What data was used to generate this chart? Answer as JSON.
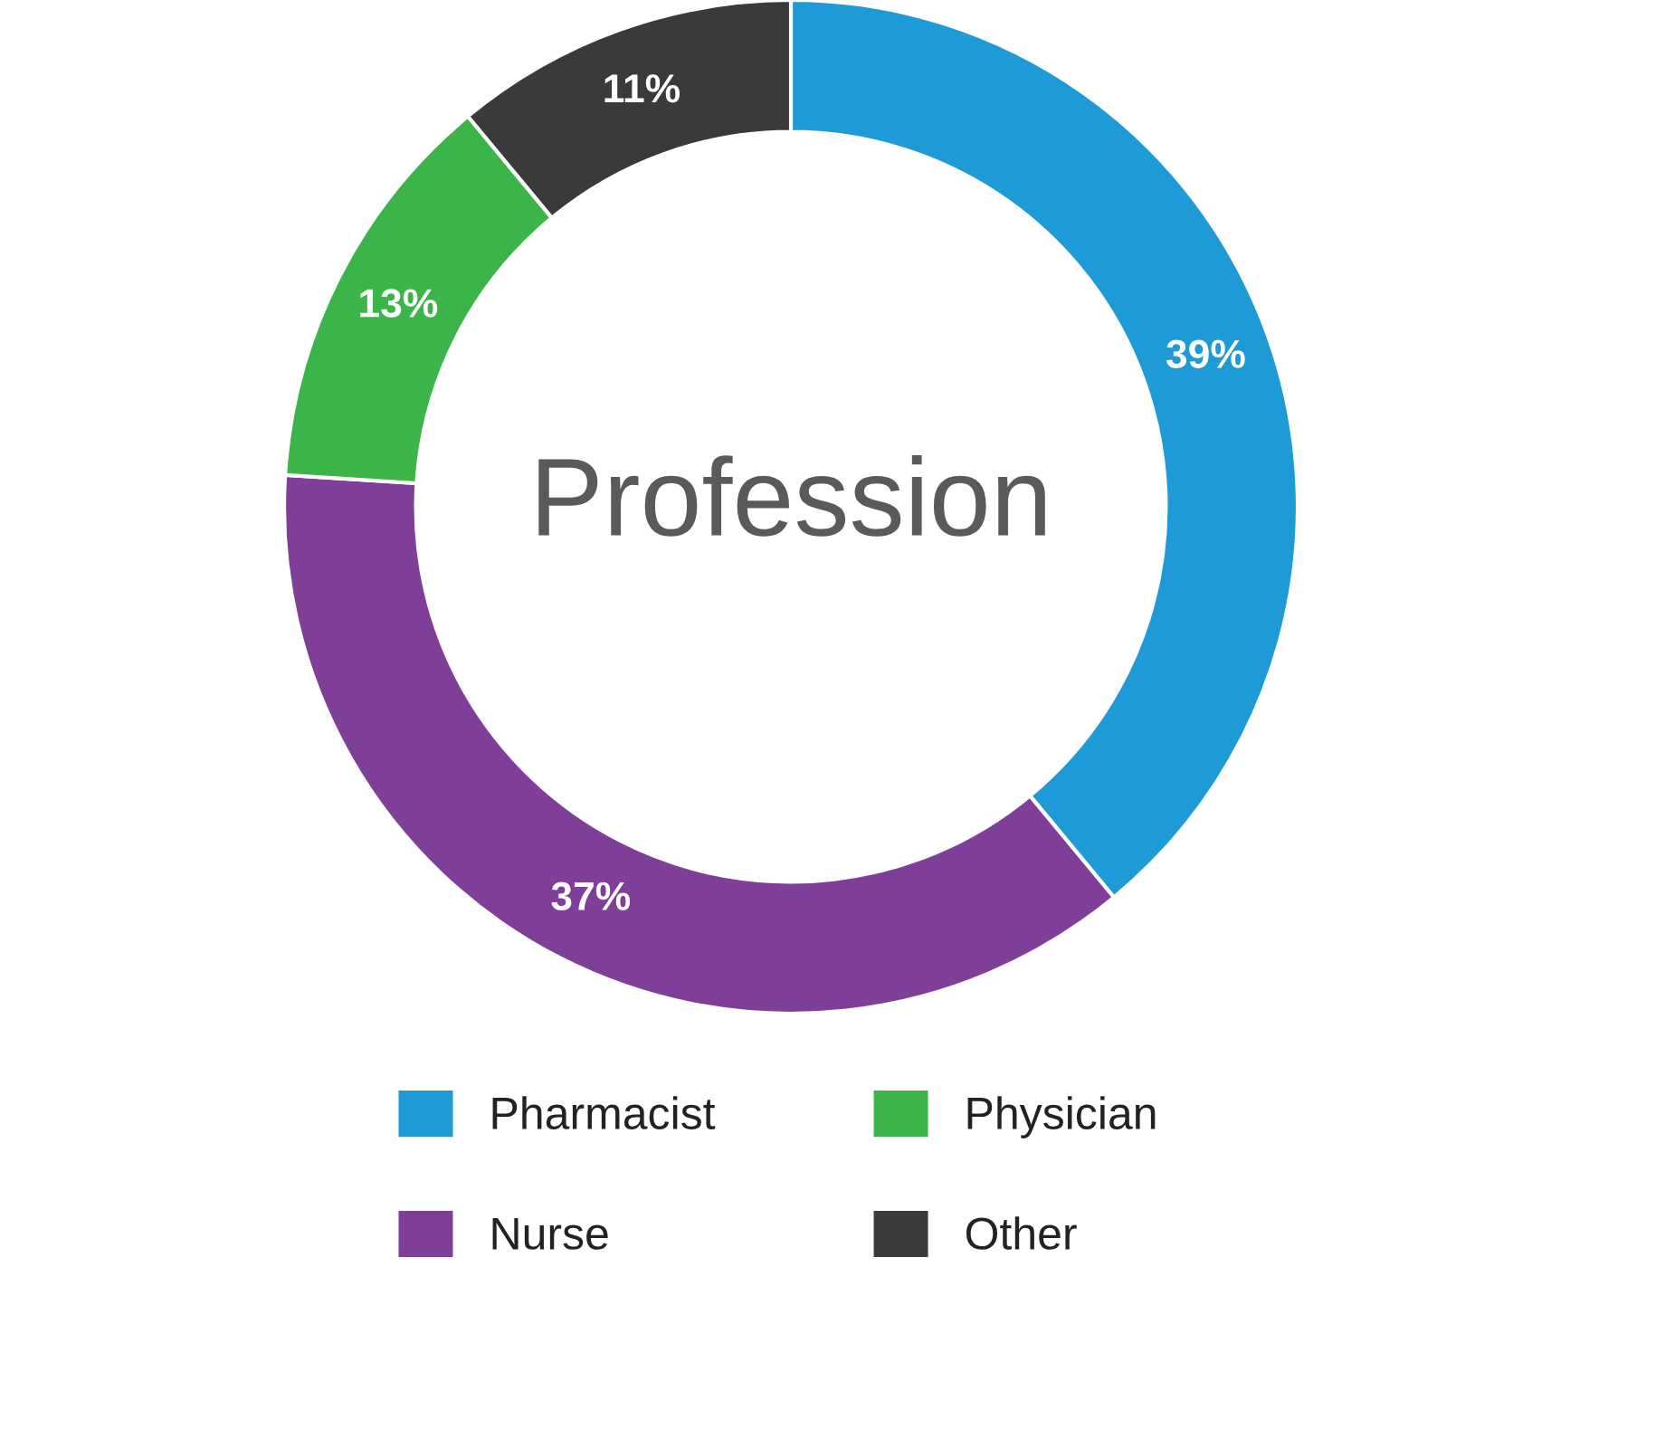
{
  "chart_data": {
    "type": "donut",
    "title": "Profession",
    "categories": [
      "Pharmacist",
      "Nurse",
      "Physician",
      "Other"
    ],
    "values": [
      39,
      37,
      13,
      11
    ],
    "colors": [
      "#1e9ad6",
      "#7f3f98",
      "#3bb44a",
      "#3a3a3a"
    ],
    "value_labels": [
      "39%",
      "37%",
      "13%",
      "11%"
    ],
    "legend": "bottom"
  }
}
